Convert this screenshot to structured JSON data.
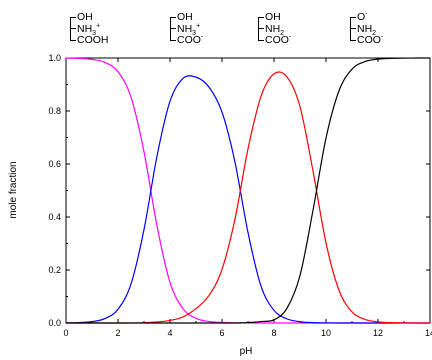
{
  "chart_data": {
    "type": "line",
    "title": "",
    "xlabel": "pH",
    "ylabel": "mole fraction",
    "xlim": [
      0,
      14
    ],
    "ylim": [
      0,
      1.0
    ],
    "x_ticks": [
      "0",
      "2",
      "4",
      "6",
      "8",
      "10",
      "12",
      "14"
    ],
    "y_ticks": [
      "0.0",
      "0.2",
      "0.4",
      "0.6",
      "0.8",
      "1.0"
    ],
    "grid": false,
    "legend": "none",
    "x": [
      0.0,
      0.5,
      1.0,
      1.5,
      2.0,
      2.5,
      3.0,
      3.5,
      4.0,
      4.5,
      5.0,
      5.5,
      6.0,
      6.5,
      7.0,
      7.5,
      8.0,
      8.5,
      9.0,
      9.5,
      10.0,
      10.5,
      11.0,
      11.5,
      12.0,
      12.5,
      13.0,
      13.5,
      14.0
    ],
    "series": [
      {
        "color": "#ff00ff",
        "values": [
          0.9995,
          0.9983,
          0.9947,
          0.9832,
          0.9482,
          0.8524,
          0.6462,
          0.3664,
          0.1534,
          0.054,
          0.0178,
          0.0057,
          0.0018,
          0.0006,
          0.0002,
          0.0001,
          0.0,
          0.0,
          0.0,
          0.0,
          0.0,
          0.0,
          0.0,
          0.0,
          0.0,
          0.0,
          0.0,
          0.0,
          0.0
        ]
      },
      {
        "color": "#0000ff",
        "values": [
          0.0005,
          0.0017,
          0.0053,
          0.0168,
          0.0518,
          0.1474,
          0.3527,
          0.6299,
          0.837,
          0.923,
          0.9278,
          0.8902,
          0.7959,
          0.6068,
          0.3414,
          0.1393,
          0.0479,
          0.0156,
          0.0048,
          0.0014,
          0.0004,
          0.0001,
          0.0,
          0.0,
          0.0,
          0.0,
          0.0,
          0.0,
          0.0
        ]
      },
      {
        "color": "#ff0000",
        "values": [
          0.0,
          0.0,
          0.0,
          0.0,
          0.0,
          0.0002,
          0.0011,
          0.0037,
          0.0096,
          0.023,
          0.0544,
          0.1041,
          0.2023,
          0.3926,
          0.6569,
          0.8551,
          0.9401,
          0.9285,
          0.816,
          0.5734,
          0.3024,
          0.1236,
          0.0419,
          0.0135,
          0.0043,
          0.0013,
          0.0004,
          0.0001,
          0.0
        ]
      },
      {
        "color": "#000000",
        "values": [
          0.0,
          0.0,
          0.0,
          0.0,
          0.0,
          0.0,
          0.0,
          0.0,
          0.0,
          0.0,
          0.0,
          0.0,
          0.0,
          0.0,
          0.0015,
          0.0055,
          0.012,
          0.0559,
          0.1792,
          0.4252,
          0.6976,
          0.8764,
          0.9581,
          0.9865,
          0.9957,
          0.9987,
          0.9996,
          0.9999,
          1.0
        ]
      }
    ]
  },
  "species": [
    {
      "lines": [
        {
          "text": "OH"
        },
        {
          "text": "NH",
          "sub": "3",
          "sup": "+"
        },
        {
          "text": "COOH"
        }
      ]
    },
    {
      "lines": [
        {
          "text": "OH"
        },
        {
          "text": "NH",
          "sub": "3",
          "sup": "+"
        },
        {
          "text": "COO",
          "sup": "-"
        }
      ]
    },
    {
      "lines": [
        {
          "text": "OH"
        },
        {
          "text": "NH",
          "sub": "2"
        },
        {
          "text": "COO",
          "sup": "-"
        }
      ]
    },
    {
      "lines": [
        {
          "text": "O",
          "sup": "-"
        },
        {
          "text": "NH",
          "sub": "2"
        },
        {
          "text": "COO",
          "sup": "-"
        }
      ]
    }
  ]
}
